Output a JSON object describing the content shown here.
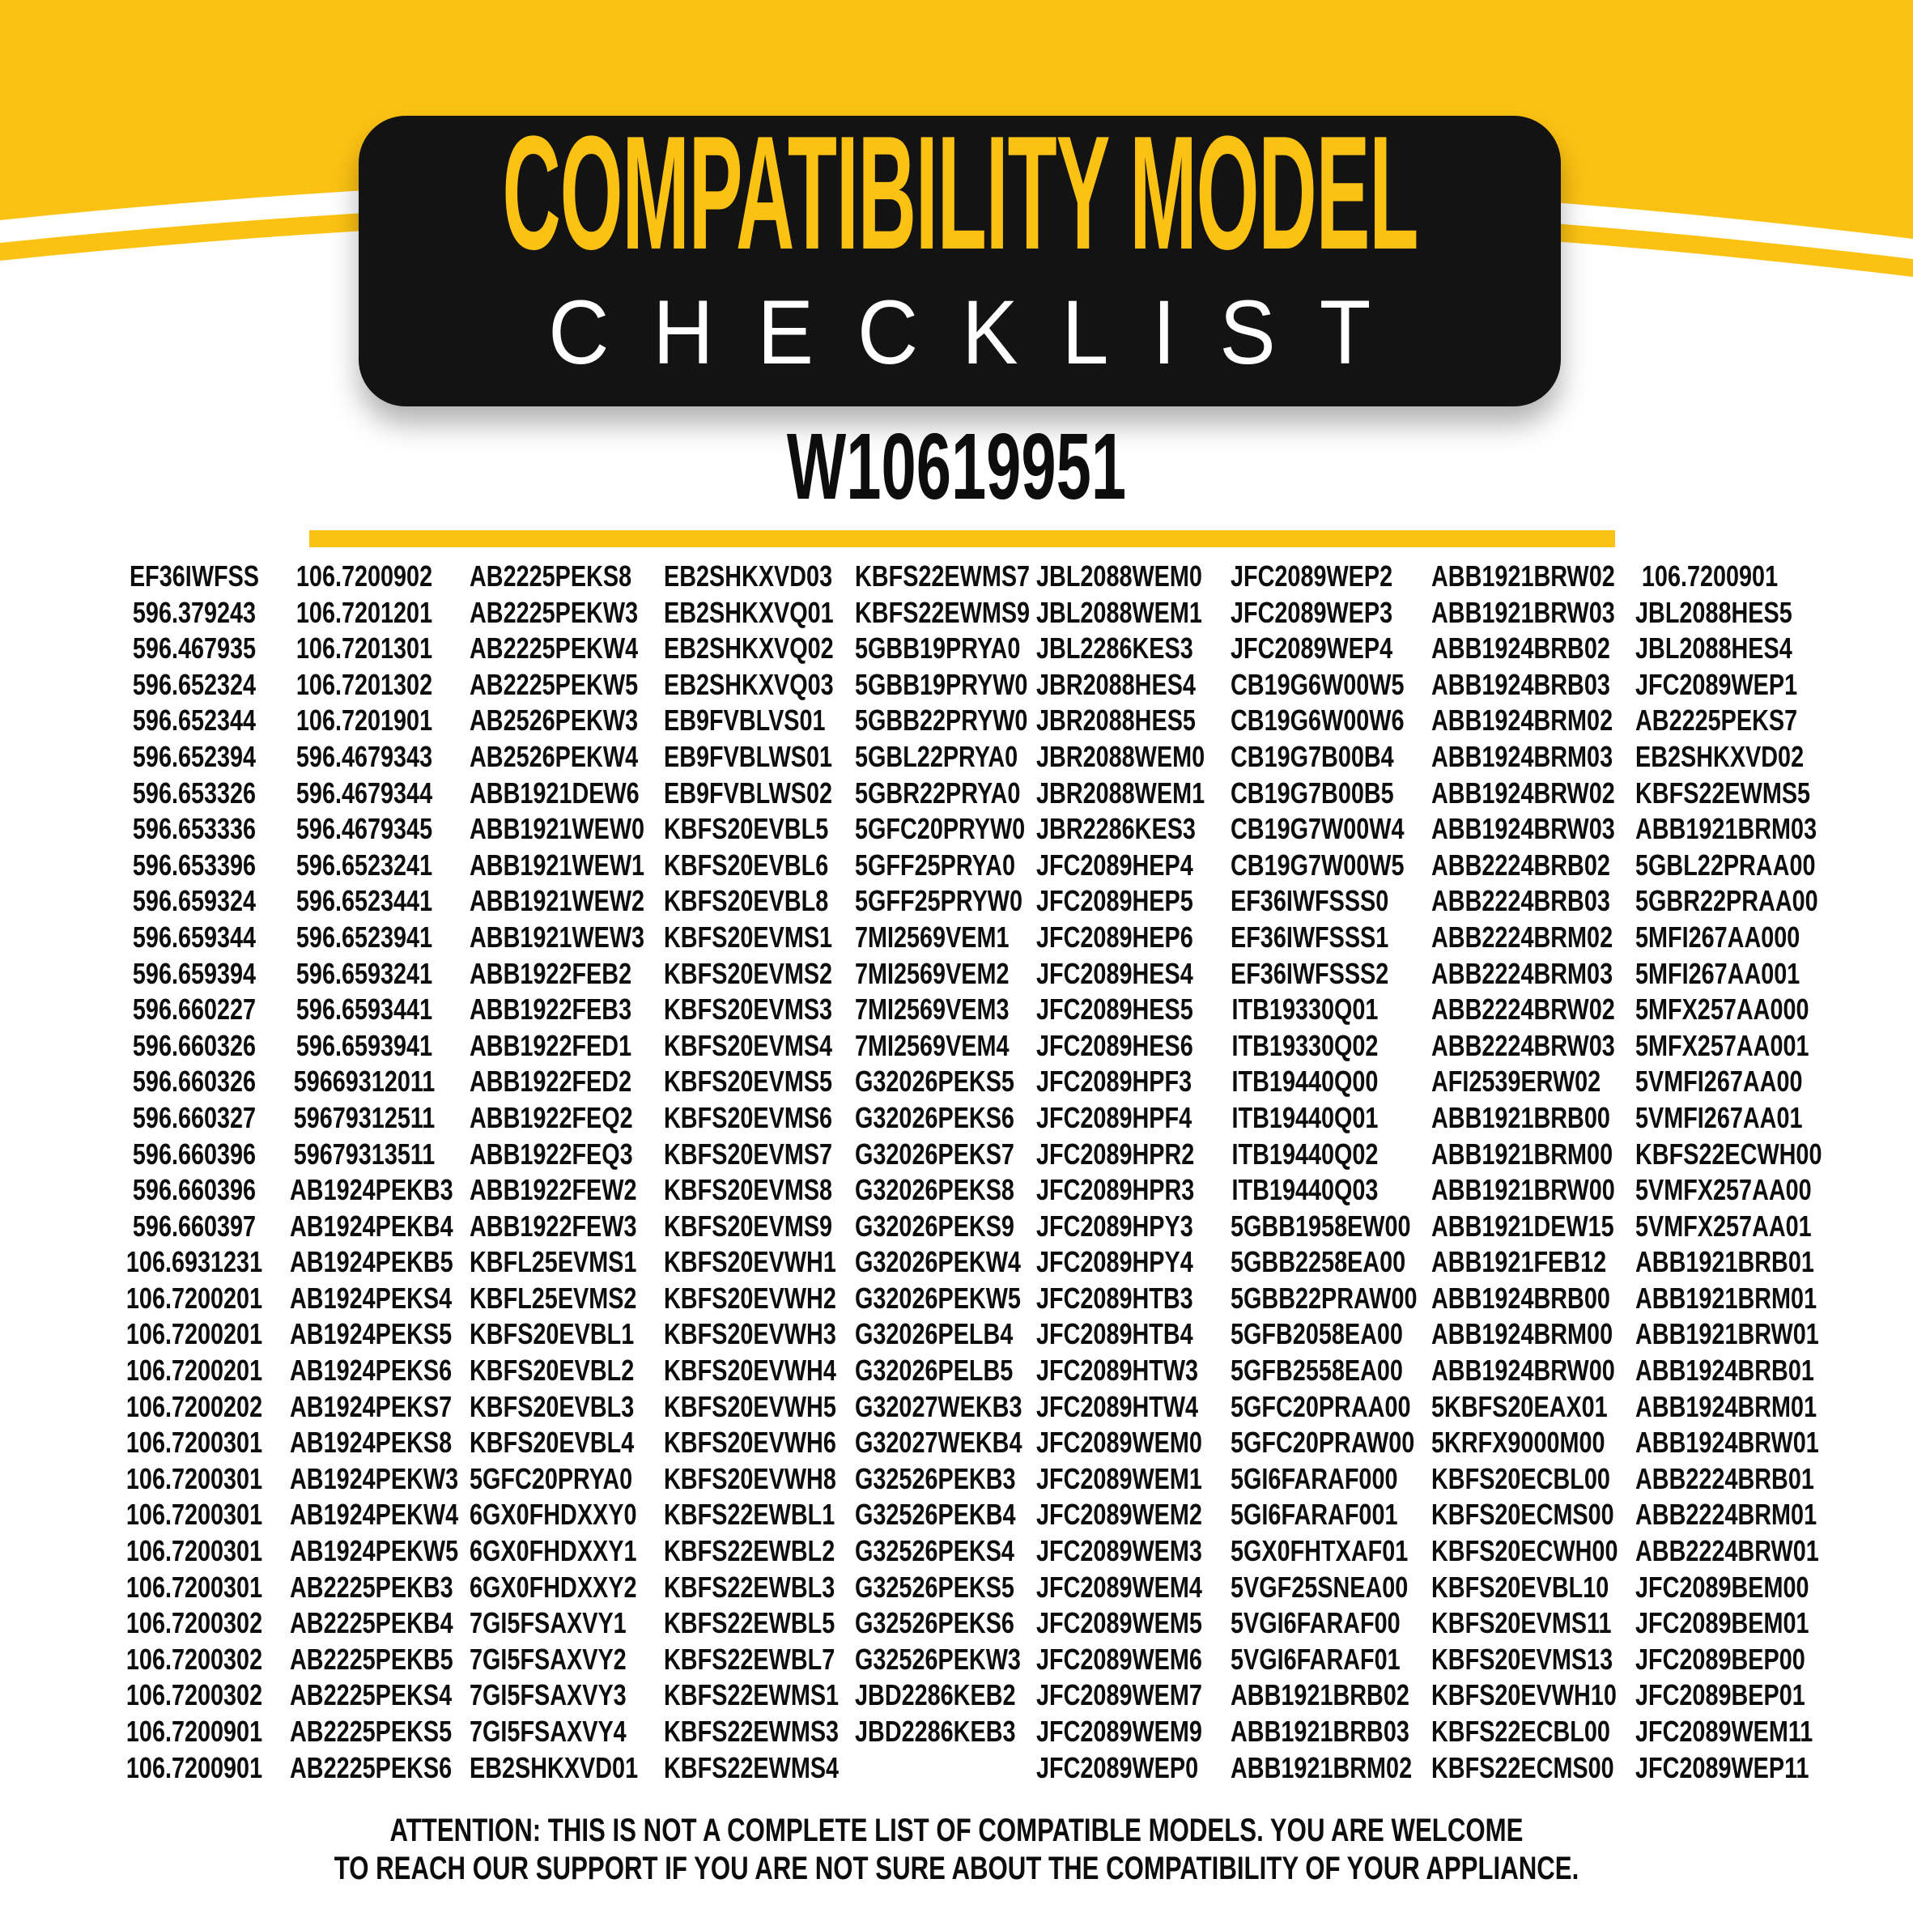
{
  "colors": {
    "yellow": "#FCC213",
    "card_black": "#131313",
    "text_black": "#0d0d0d",
    "white": "#ffffff"
  },
  "header": {
    "title_line1": "COMPATIBILITY MODEL",
    "title_line2": "CHECKLIST",
    "part_number": "W10619951"
  },
  "table": {
    "columns": [
      [
        "EF36IWFSS",
        "596.379243",
        "596.467935",
        "596.652324",
        "596.652344",
        "596.652394",
        "596.653326",
        "596.653336",
        "596.653396",
        "596.659324",
        "596.659344",
        "596.659394",
        "596.660227",
        "596.660326",
        "596.660326",
        "596.660327",
        "596.660396",
        "596.660396",
        "596.660397",
        "106.6931231",
        "106.7200201",
        "106.7200201",
        "106.7200201",
        "106.7200202",
        "106.7200301",
        "106.7200301",
        "106.7200301",
        "106.7200301",
        "106.7200301",
        "106.7200302",
        "106.7200302",
        "106.7200302",
        "106.7200901",
        "106.7200901"
      ],
      [
        "106.7200902",
        "106.7201201",
        "106.7201301",
        "106.7201302",
        "106.7201901",
        "596.4679343",
        "596.4679344",
        "596.4679345",
        "596.6523241",
        "596.6523441",
        "596.6523941",
        "596.6593241",
        "596.6593441",
        "596.6593941",
        "59669312011",
        "59679312511",
        "59679313511",
        "AB1924PEKB3",
        "AB1924PEKB4",
        "AB1924PEKB5",
        "AB1924PEKS4",
        "AB1924PEKS5",
        "AB1924PEKS6",
        "AB1924PEKS7",
        "AB1924PEKS8",
        "AB1924PEKW3",
        "AB1924PEKW4",
        "AB1924PEKW5",
        "AB2225PEKB3",
        "AB2225PEKB4",
        "AB2225PEKB5",
        "AB2225PEKS4",
        "AB2225PEKS5",
        "AB2225PEKS6"
      ],
      [
        "AB2225PEKS8",
        "AB2225PEKW3",
        "AB2225PEKW4",
        "AB2225PEKW5",
        "AB2526PEKW3",
        "AB2526PEKW4",
        "ABB1921DEW6",
        "ABB1921WEW0",
        "ABB1921WEW1",
        "ABB1921WEW2",
        "ABB1921WEW3",
        "ABB1922FEB2",
        "ABB1922FEB3",
        "ABB1922FED1",
        "ABB1922FED2",
        "ABB1922FEQ2",
        "ABB1922FEQ3",
        "ABB1922FEW2",
        "ABB1922FEW3",
        "KBFL25EVMS1",
        "KBFL25EVMS2",
        "KBFS20EVBL1",
        "KBFS20EVBL2",
        "KBFS20EVBL3",
        "KBFS20EVBL4",
        "5GFC20PRYA0",
        "6GX0FHDXXY0",
        "6GX0FHDXXY1",
        "6GX0FHDXXY2",
        "7GI5FSAXVY1",
        "7GI5FSAXVY2",
        "7GI5FSAXVY3",
        "7GI5FSAXVY4",
        "EB2SHKXVD01"
      ],
      [
        "EB2SHKXVD03",
        "EB2SHKXVQ01",
        "EB2SHKXVQ02",
        "EB2SHKXVQ03",
        "EB9FVBLVS01",
        "EB9FVBLWS01",
        "EB9FVBLWS02",
        "KBFS20EVBL5",
        "KBFS20EVBL6",
        "KBFS20EVBL8",
        "KBFS20EVMS1",
        "KBFS20EVMS2",
        "KBFS20EVMS3",
        "KBFS20EVMS4",
        "KBFS20EVMS5",
        "KBFS20EVMS6",
        "KBFS20EVMS7",
        "KBFS20EVMS8",
        "KBFS20EVMS9",
        "KBFS20EVWH1",
        "KBFS20EVWH2",
        "KBFS20EVWH3",
        "KBFS20EVWH4",
        "KBFS20EVWH5",
        "KBFS20EVWH6",
        "KBFS20EVWH8",
        "KBFS22EWBL1",
        "KBFS22EWBL2",
        "KBFS22EWBL3",
        "KBFS22EWBL5",
        "KBFS22EWBL7",
        "KBFS22EWMS1",
        "KBFS22EWMS3",
        "KBFS22EWMS4"
      ],
      [
        "KBFS22EWMS7",
        "KBFS22EWMS9",
        "5GBB19PRYA0",
        "5GBB19PRYW0",
        "5GBB22PRYW0",
        "5GBL22PRYA0",
        "5GBR22PRYA0",
        "5GFC20PRYW0",
        "5GFF25PRYA0",
        "5GFF25PRYW0",
        "7MI2569VEM1",
        "7MI2569VEM2",
        "7MI2569VEM3",
        "7MI2569VEM4",
        "G32026PEKS5",
        "G32026PEKS6",
        "G32026PEKS7",
        "G32026PEKS8",
        "G32026PEKS9",
        "G32026PEKW4",
        "G32026PEKW5",
        "G32026PELB4",
        "G32026PELB5",
        "G32027WEKB3",
        "G32027WEKB4",
        "G32526PEKB3",
        "G32526PEKB4",
        "G32526PEKS4",
        "G32526PEKS5",
        "G32526PEKS6",
        "G32526PEKW3",
        "JBD2286KEB2",
        "JBD2286KEB3"
      ],
      [
        "JBL2088WEM0",
        "JBL2088WEM1",
        "JBL2286KES3",
        "JBR2088HES4",
        "JBR2088HES5",
        "JBR2088WEM0",
        "JBR2088WEM1",
        "JBR2286KES3",
        "JFC2089HEP4",
        "JFC2089HEP5",
        "JFC2089HEP6",
        "JFC2089HES4",
        "JFC2089HES5",
        "JFC2089HES6",
        "JFC2089HPF3",
        "JFC2089HPF4",
        "JFC2089HPR2",
        "JFC2089HPR3",
        "JFC2089HPY3",
        "JFC2089HPY4",
        "JFC2089HTB3",
        "JFC2089HTB4",
        "JFC2089HTW3",
        "JFC2089HTW4",
        "JFC2089WEM0",
        "JFC2089WEM1",
        "JFC2089WEM2",
        "JFC2089WEM3",
        "JFC2089WEM4",
        "JFC2089WEM5",
        "JFC2089WEM6",
        "JFC2089WEM7",
        "JFC2089WEM9",
        "JFC2089WEP0"
      ],
      [
        "JFC2089WEP2",
        "JFC2089WEP3",
        "JFC2089WEP4",
        "CB19G6W00W5",
        "CB19G6W00W6",
        "CB19G7B00B4",
        "CB19G7B00B5",
        "CB19G7W00W4",
        "CB19G7W00W5",
        "EF36IWFSSS0",
        "EF36IWFSSS1",
        "EF36IWFSSS2",
        "ITB19330Q01",
        "ITB19330Q02",
        "ITB19440Q00",
        "ITB19440Q01",
        "ITB19440Q02",
        "ITB19440Q03",
        "5GBB1958EW00",
        "5GBB2258EA00",
        "5GBB22PRAW00",
        "5GFB2058EA00",
        "5GFB2558EA00",
        "5GFC20PRAA00",
        "5GFC20PRAW00",
        "5GI6FARAF000",
        "5GI6FARAF001",
        "5GX0FHTXAF01",
        "5VGF25SNEA00",
        "5VGI6FARAF00",
        "5VGI6FARAF01",
        "ABB1921BRB02",
        "ABB1921BRB03",
        "ABB1921BRM02"
      ],
      [
        "ABB1921BRW02",
        "ABB1921BRW03",
        "ABB1924BRB02",
        "ABB1924BRB03",
        "ABB1924BRM02",
        "ABB1924BRM03",
        "ABB1924BRW02",
        "ABB1924BRW03",
        "ABB2224BRB02",
        "ABB2224BRB03",
        "ABB2224BRM02",
        "ABB2224BRM03",
        "ABB2224BRW02",
        "ABB2224BRW03",
        "AFI2539ERW02",
        "ABB1921BRB00",
        "ABB1921BRM00",
        "ABB1921BRW00",
        "ABB1921DEW15",
        "ABB1921FEB12",
        "ABB1924BRB00",
        "ABB1924BRM00",
        "ABB1924BRW00",
        "5KBFS20EAX01",
        "5KRFX9000M00",
        "KBFS20ECBL00",
        "KBFS20ECMS00",
        "KBFS20ECWH00",
        "KBFS20EVBL10",
        "KBFS20EVMS11",
        "KBFS20EVMS13",
        "KBFS20EVWH10",
        "KBFS22ECBL00",
        "KBFS22ECMS00"
      ],
      [
        "106.7200901",
        "JBL2088HES5",
        "JBL2088HES4",
        "JFC2089WEP1",
        "AB2225PEKS7",
        "EB2SHKXVD02",
        "KBFS22EWMS5",
        "ABB1921BRM03",
        "5GBL22PRAA00",
        "5GBR22PRAA00",
        "5MFI267AA000",
        "5MFI267AA001",
        "5MFX257AA000",
        "5MFX257AA001",
        "5VMFI267AA00",
        "5VMFI267AA01",
        "KBFS22ECWH00",
        "5VMFX257AA00",
        "5VMFX257AA01",
        "ABB1921BRB01",
        "ABB1921BRM01",
        "ABB1921BRW01",
        "ABB1924BRB01",
        "ABB1924BRM01",
        "ABB1924BRW01",
        "ABB2224BRB01",
        "ABB2224BRM01",
        "ABB2224BRW01",
        "JFC2089BEM00",
        "JFC2089BEM01",
        "JFC2089BEP00",
        "JFC2089BEP01",
        "JFC2089WEM11",
        "JFC2089WEP11"
      ]
    ]
  },
  "footer": {
    "line1": "ATTENTION: THIS IS NOT A COMPLETE LIST OF COMPATIBLE MODELS. YOU ARE WELCOME",
    "line2": "TO REACH OUR SUPPORT IF YOU ARE NOT SURE ABOUT THE COMPATIBILITY OF YOUR APPLIANCE."
  }
}
